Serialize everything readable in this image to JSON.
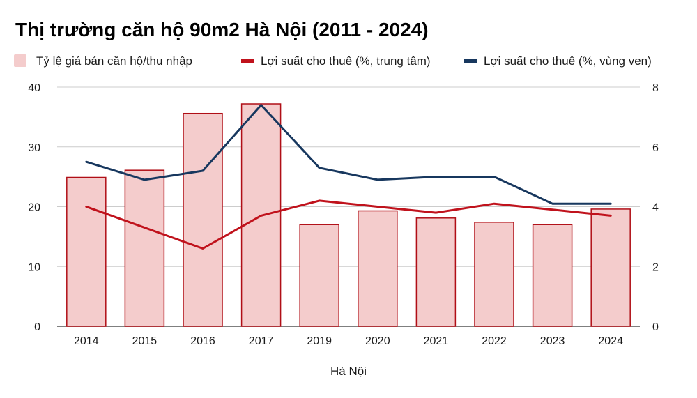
{
  "chart_data": {
    "type": "bar",
    "title": "Thị trường căn hộ 90m2 Hà Nội (2011 - 2024)",
    "xlabel": "Hà Nội",
    "ylabel": "",
    "y2label": "",
    "categories": [
      "2014",
      "2015",
      "2016",
      "2017",
      "2019",
      "2020",
      "2021",
      "2022",
      "2023",
      "2024"
    ],
    "ylim": [
      0,
      40
    ],
    "y2lim": [
      0,
      8
    ],
    "yticks": [
      "0",
      "10",
      "20",
      "30",
      "40"
    ],
    "y2ticks": [
      "0",
      "2",
      "4",
      "6",
      "8"
    ],
    "grid": true,
    "legend_position": "top",
    "series": [
      {
        "name": "Tỷ lệ giá bán căn hộ/thu nhập",
        "kind": "bar",
        "axis": "left",
        "color": "#f4cccc",
        "stroke": "#b00e16",
        "values": [
          24.9,
          26.1,
          35.6,
          37.2,
          17.0,
          19.3,
          18.1,
          17.4,
          17.0,
          19.6
        ]
      },
      {
        "name": "Lợi suất cho thuê (%, trung tâm)",
        "kind": "line",
        "axis": "right",
        "color": "#c0121c",
        "values": [
          4.0,
          null,
          2.6,
          3.7,
          4.2,
          4.0,
          3.8,
          4.1,
          3.9,
          3.7
        ]
      },
      {
        "name": "Lợi suất cho thuê (%, vùng ven)",
        "kind": "line",
        "axis": "right",
        "color": "#17375e",
        "values": [
          5.5,
          4.9,
          5.2,
          7.4,
          5.3,
          4.9,
          5.0,
          5.0,
          4.1,
          4.1
        ]
      }
    ]
  }
}
